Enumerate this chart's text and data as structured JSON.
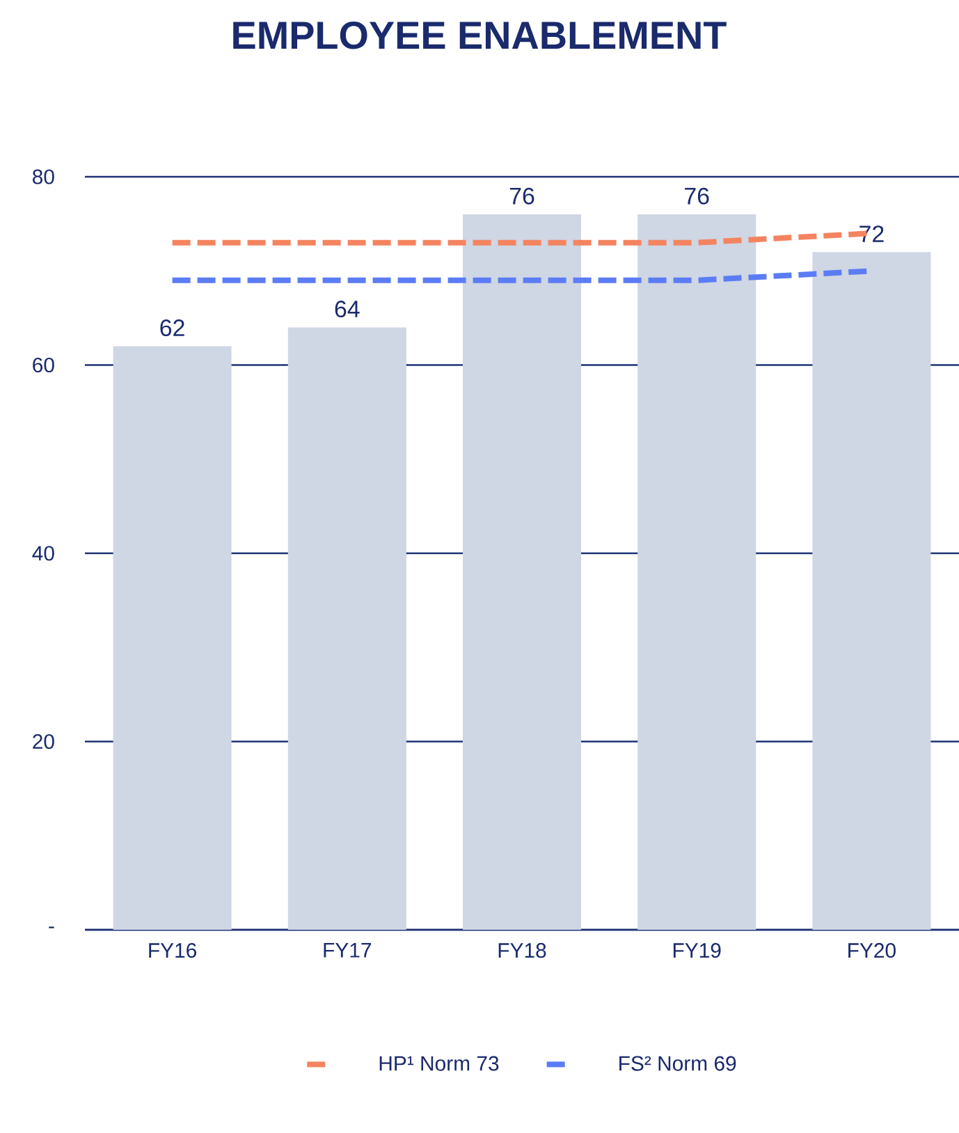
{
  "chart_data": {
    "type": "bar",
    "title": "EMPLOYEE ENABLEMENT",
    "categories": [
      "FY16",
      "FY17",
      "FY18",
      "FY19",
      "FY20"
    ],
    "series": [
      {
        "type": "bar",
        "color": "#cfd6e4",
        "values": [
          62,
          64,
          76,
          76,
          72
        ],
        "value_labels": [
          "62",
          "64",
          "76",
          "76",
          "72"
        ]
      },
      {
        "type": "line",
        "name": "HP¹ Norm 73",
        "color": "#f4845f",
        "line_style": "dashed",
        "values": [
          73,
          73,
          73,
          73,
          74
        ]
      },
      {
        "type": "line",
        "name": "FS² Norm 69",
        "color": "#5b7cf5",
        "line_style": "dashed",
        "values": [
          69,
          69,
          69,
          69,
          70
        ]
      }
    ],
    "ylim": [
      0,
      80
    ],
    "yticks": [
      {
        "value": 0,
        "label": "-"
      },
      20,
      40,
      60,
      80
    ],
    "grid": "y",
    "legend": "bottom"
  }
}
